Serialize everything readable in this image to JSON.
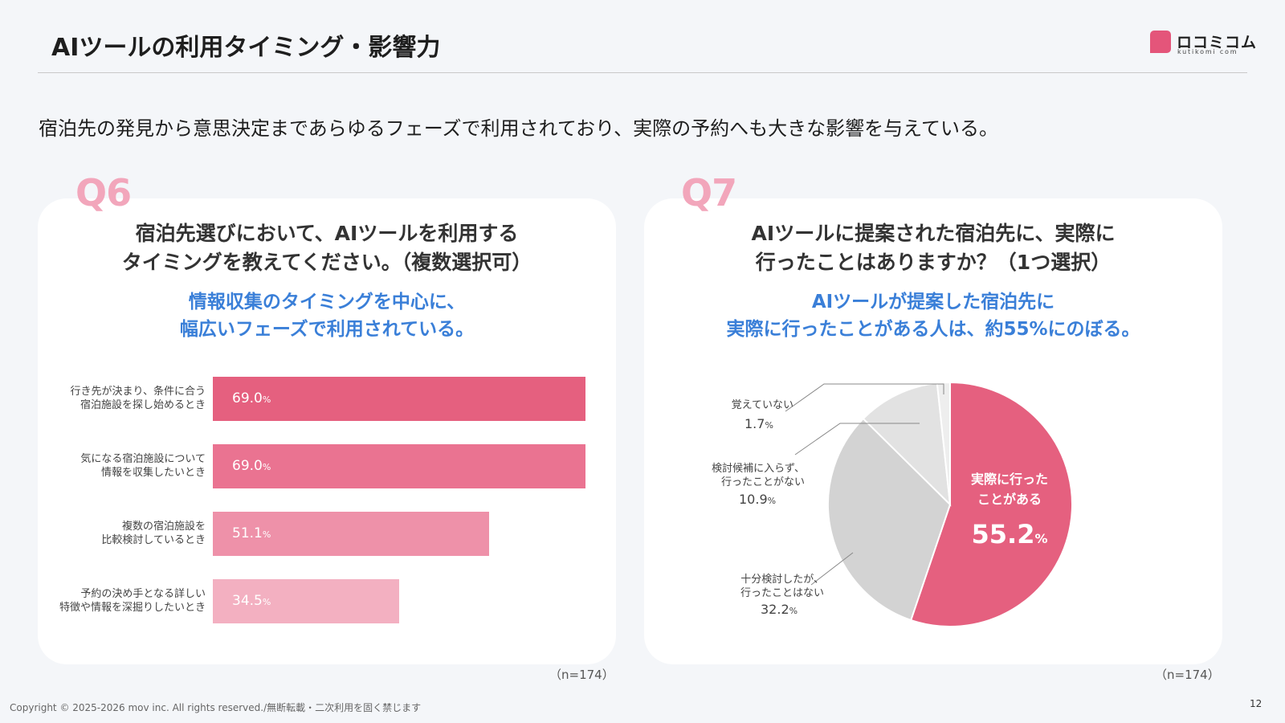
{
  "header": {
    "title": "AIツールの利用タイミング・影響力",
    "logo_text": "ロコミコム",
    "logo_sub": "kutikomi com"
  },
  "lead": "宿泊先の発見から意思決定まであらゆるフェーズで利用されており、実際の予約へも大きな影響を与えている。",
  "q6": {
    "label": "Q6",
    "question_line1": "宿泊先選びにおいて、AIツールを利用する",
    "question_line2": "タイミングを教えてください。（複数選択可）",
    "highlight_line1": "情報収集のタイミングを中心に、",
    "highlight_line2": "幅広いフェーズで利用されている。",
    "n_note": "（n=174）"
  },
  "q7": {
    "label": "Q7",
    "question_line1": "AIツールに提案された宿泊先に、実際に",
    "question_line2": "行ったことはありますか？（1つ選択）",
    "highlight_line1": "AIツールが提案した宿泊先に",
    "highlight_line2": "実際に行ったことがある人は、約55%にのぼる。",
    "n_note": "（n=174）"
  },
  "chart_data": [
    {
      "type": "bar",
      "orientation": "horizontal",
      "categories": [
        [
          "行き先が決まり、条件に合う",
          "宿泊施設を探し始めるとき"
        ],
        [
          "気になる宿泊施設について",
          "情報を収集したいとき"
        ],
        [
          "複数の宿泊施設を",
          "比較検討しているとき"
        ],
        [
          "予約の決め手となる詳しい",
          "特徴や情報を深掘りしたいとき"
        ]
      ],
      "values": [
        69.0,
        69.0,
        51.1,
        34.5
      ],
      "value_labels": [
        "69.0",
        "69.0",
        "51.1",
        "34.5"
      ],
      "unit": "%",
      "xlim": [
        0,
        69.0
      ],
      "colors": [
        "#e5607f",
        "#ea7391",
        "#ee91a9",
        "#f3b0c1"
      ],
      "grid": false,
      "legend": "none"
    },
    {
      "type": "pie",
      "slices": [
        {
          "label_lines": [
            "実際に行った",
            "ことがある"
          ],
          "value": 55.2,
          "value_label": "55.2",
          "color": "#e5607f"
        },
        {
          "label_lines": [
            "十分検討したが、",
            "行ったことはない"
          ],
          "value": 32.2,
          "value_label": "32.2",
          "color": "#d3d3d3"
        },
        {
          "label_lines": [
            "検討候補に入らず、",
            "行ったことがない"
          ],
          "value": 10.9,
          "value_label": "10.9",
          "color": "#e2e2e2"
        },
        {
          "label_lines": [
            "覚えていない"
          ],
          "value": 1.7,
          "value_label": "1.7",
          "color": "#eeeeee"
        }
      ],
      "unit": "%",
      "start": "12 o'clock",
      "direction": "clockwise",
      "legend": "callouts"
    }
  ],
  "footer": {
    "copyright": "Copyright © 2025-2026 mov inc. All rights reserved./無断転載・二次利用を固く禁じます",
    "page": "12"
  }
}
